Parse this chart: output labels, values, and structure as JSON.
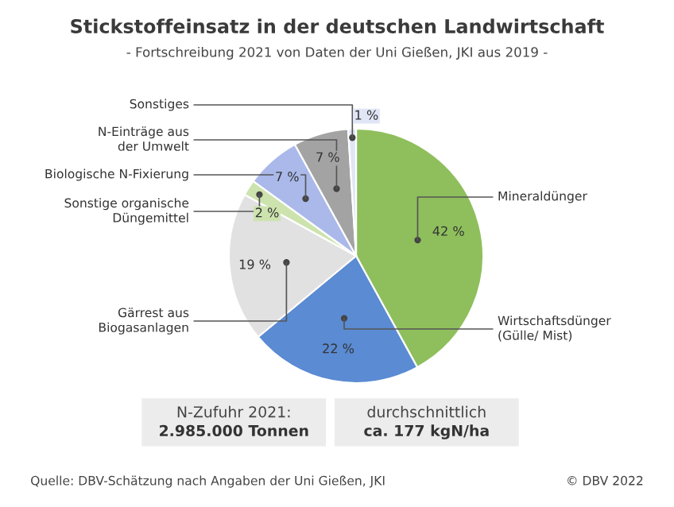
{
  "chart_data": {
    "type": "pie",
    "title": "Stickstoffeinsatz in der deutschen Landwirtschaft",
    "subtitle": "- Fortschreibung 2021 von Daten der Uni Gießen, JKI aus 2019 -",
    "categories": [
      "Mineraldünger",
      "Wirtschaftsdünger\n(Gülle/ Mist)",
      "Gärrest aus\nBiogasanlagen",
      "Sonstige organische\nDüngemittel",
      "Biologische N-Fixierung",
      "N-Einträge aus\nder Umwelt",
      "Sonstiges"
    ],
    "values": [
      42,
      22,
      19,
      2,
      7,
      7,
      1
    ],
    "value_labels": [
      "42 %",
      "22 %",
      "19 %",
      "2 %",
      "7 %",
      "7 %",
      "1 %"
    ],
    "colors": [
      "#8fbf5c",
      "#5a8bd3",
      "#e1e1e1",
      "#cde3ae",
      "#aab9ea",
      "#a3a3a3",
      "#e1e6f6"
    ],
    "annotations": [
      "N-Zufuhr 2021:\n2.985.000 Tonnen",
      "durchschnittlich\nca. 177 kgN/ha",
      "Quelle: DBV-Schätzung nach Angaben der Uni Gießen, JKI",
      "© DBV 2022"
    ]
  }
}
